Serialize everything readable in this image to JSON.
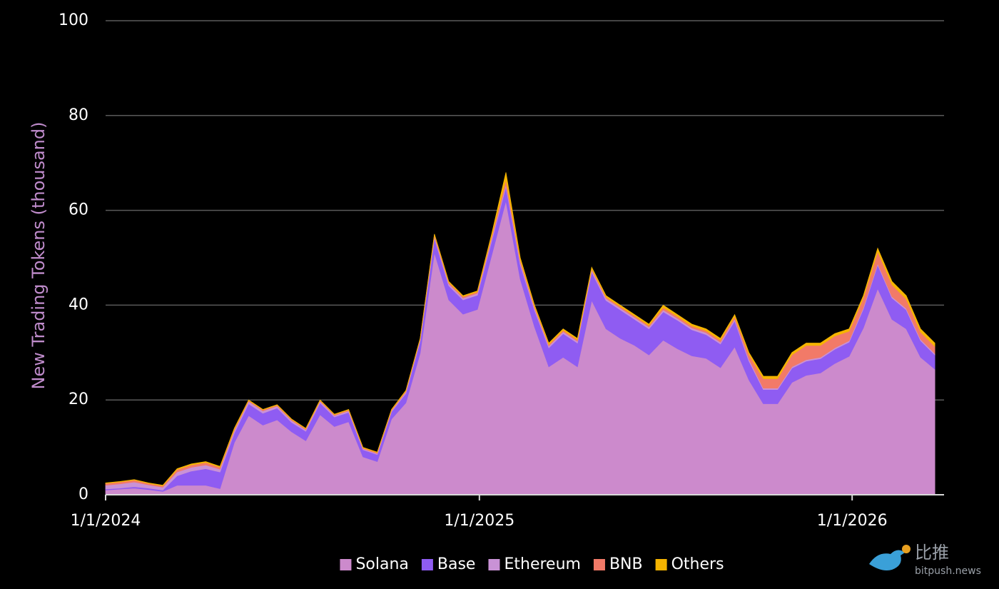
{
  "chart_data": {
    "type": "stacked-area",
    "y_label": "New Trading Tokens (thousand)",
    "x": [
      "1/1/2024",
      "1/15/2024",
      "1/29/2024",
      "2/12/2024",
      "2/26/2024",
      "3/11/2024",
      "3/25/2024",
      "4/8/2024",
      "4/22/2024",
      "5/6/2024",
      "5/20/2024",
      "6/3/2024",
      "6/17/2024",
      "7/1/2024",
      "7/15/2024",
      "7/29/2024",
      "8/12/2024",
      "8/26/2024",
      "9/9/2024",
      "9/23/2024",
      "10/7/2024",
      "10/21/2024",
      "11/4/2024",
      "11/18/2024",
      "12/2/2024",
      "12/16/2024",
      "12/30/2024",
      "1/13/2025",
      "1/27/2025",
      "2/10/2025",
      "2/24/2025",
      "3/10/2025",
      "3/24/2025",
      "4/7/2025",
      "4/21/2025",
      "5/5/2025",
      "5/19/2025",
      "6/2/2025",
      "6/16/2025",
      "6/30/2025",
      "7/14/2025",
      "7/28/2025",
      "8/11/2025",
      "8/25/2025",
      "9/8/2025",
      "9/22/2025",
      "10/6/2025",
      "10/20/2025",
      "11/3/2025",
      "11/17/2025",
      "12/1/2025",
      "12/15/2025",
      "12/29/2025",
      "1/12/2026",
      "1/26/2026",
      "2/9/2026",
      "2/23/2026",
      "3/9/2026",
      "3/23/2026"
    ],
    "series": [
      {
        "name": "Solana",
        "color": "#cc8acc",
        "values": [
          1.0,
          1.2,
          1.4,
          1.1,
          0.7,
          2.0,
          2.0,
          2.0,
          1.3,
          11.0,
          16.7,
          14.7,
          15.8,
          13.3,
          11.4,
          16.9,
          14.4,
          15.4,
          8.0,
          7.0,
          16.0,
          19.4,
          29.9,
          51.1,
          41.1,
          38.1,
          39.1,
          50.5,
          62.0,
          45.5,
          35.4,
          27.0,
          29.0,
          27.0,
          41.0,
          35.0,
          33.0,
          31.5,
          29.5,
          32.6,
          30.8,
          29.3,
          28.8,
          26.8,
          31.2,
          24.2,
          19.2,
          19.2,
          23.7,
          25.2,
          25.7,
          27.7,
          29.2,
          35.2,
          43.5,
          37.0,
          35.0,
          29.0,
          26.5
        ]
      },
      {
        "name": "Base",
        "color": "#8f5cf2",
        "values": [
          0.2,
          0.2,
          0.3,
          0.3,
          0.3,
          2.0,
          3.0,
          3.5,
          3.5,
          2.0,
          2.5,
          2.5,
          2.5,
          2.0,
          2.0,
          2.5,
          2.0,
          2.0,
          1.5,
          1.5,
          1.5,
          2.0,
          2.5,
          3.0,
          3.0,
          3.0,
          3.0,
          3.0,
          3.0,
          3.0,
          3.5,
          4.0,
          5.0,
          5.0,
          6.0,
          6.0,
          6.0,
          5.5,
          5.5,
          6.0,
          6.0,
          5.5,
          5.0,
          5.0,
          5.5,
          4.0,
          3.0,
          3.0,
          3.0,
          3.0,
          3.0,
          3.0,
          3.0,
          4.0,
          5.0,
          4.5,
          4.0,
          3.5,
          3.0
        ]
      },
      {
        "name": "Ethereum",
        "color": "#c992d6",
        "values": [
          0.8,
          0.9,
          1.0,
          0.7,
          0.6,
          0.8,
          0.8,
          0.8,
          0.6,
          0.5,
          0.5,
          0.5,
          0.4,
          0.4,
          0.3,
          0.3,
          0.3,
          0.3,
          0.2,
          0.2,
          0.2,
          0.3,
          0.3,
          0.4,
          0.4,
          0.4,
          0.4,
          0.5,
          0.5,
          0.5,
          0.4,
          0.4,
          0.4,
          0.4,
          0.4,
          0.4,
          0.4,
          0.4,
          0.4,
          0.4,
          0.4,
          0.4,
          0.4,
          0.4,
          0.4,
          0.4,
          0.3,
          0.3,
          0.3,
          0.3,
          0.3,
          0.3,
          0.3,
          0.3,
          0.3,
          0.3,
          0.3,
          0.3,
          0.3
        ]
      },
      {
        "name": "BNB",
        "color": "#f27a68",
        "values": [
          0.4,
          0.4,
          0.4,
          0.3,
          0.3,
          0.5,
          0.5,
          0.5,
          0.4,
          0.3,
          0.2,
          0.2,
          0.2,
          0.2,
          0.2,
          0.2,
          0.2,
          0.2,
          0.2,
          0.2,
          0.2,
          0.2,
          0.2,
          0.3,
          0.3,
          0.3,
          0.3,
          0.5,
          1.0,
          0.5,
          0.4,
          0.3,
          0.3,
          0.3,
          0.3,
          0.3,
          0.3,
          0.3,
          0.3,
          0.5,
          0.4,
          0.4,
          0.4,
          0.4,
          0.5,
          1.0,
          2.0,
          2.0,
          2.5,
          3.0,
          2.5,
          2.5,
          2.0,
          2.0,
          2.5,
          2.5,
          2.0,
          1.5,
          1.5
        ]
      },
      {
        "name": "Others",
        "color": "#f5b400",
        "values": [
          0.1,
          0.1,
          0.1,
          0.1,
          0.1,
          0.2,
          0.2,
          0.2,
          0.2,
          0.2,
          0.1,
          0.1,
          0.1,
          0.1,
          0.1,
          0.1,
          0.1,
          0.1,
          0.1,
          0.1,
          0.1,
          0.1,
          0.1,
          0.2,
          0.2,
          0.2,
          0.2,
          0.5,
          1.5,
          0.5,
          0.3,
          0.3,
          0.3,
          0.3,
          0.3,
          0.3,
          0.3,
          0.3,
          0.3,
          0.5,
          0.4,
          0.4,
          0.4,
          0.4,
          0.4,
          0.4,
          0.5,
          0.5,
          0.5,
          0.5,
          0.5,
          0.5,
          0.5,
          0.5,
          0.7,
          0.7,
          0.7,
          0.7,
          0.7
        ]
      }
    ],
    "xlim": [
      "1/1/2024",
      "4/1/2026"
    ],
    "xticks": [
      "1/1/2024",
      "1/1/2025",
      "1/1/2026"
    ],
    "ylim": [
      0,
      100
    ],
    "yticks": [
      0,
      20,
      40,
      60,
      80,
      100
    ],
    "grid": true,
    "legend": "bottom",
    "watermark": {
      "name": "比推",
      "site": "bitpush.news"
    }
  }
}
